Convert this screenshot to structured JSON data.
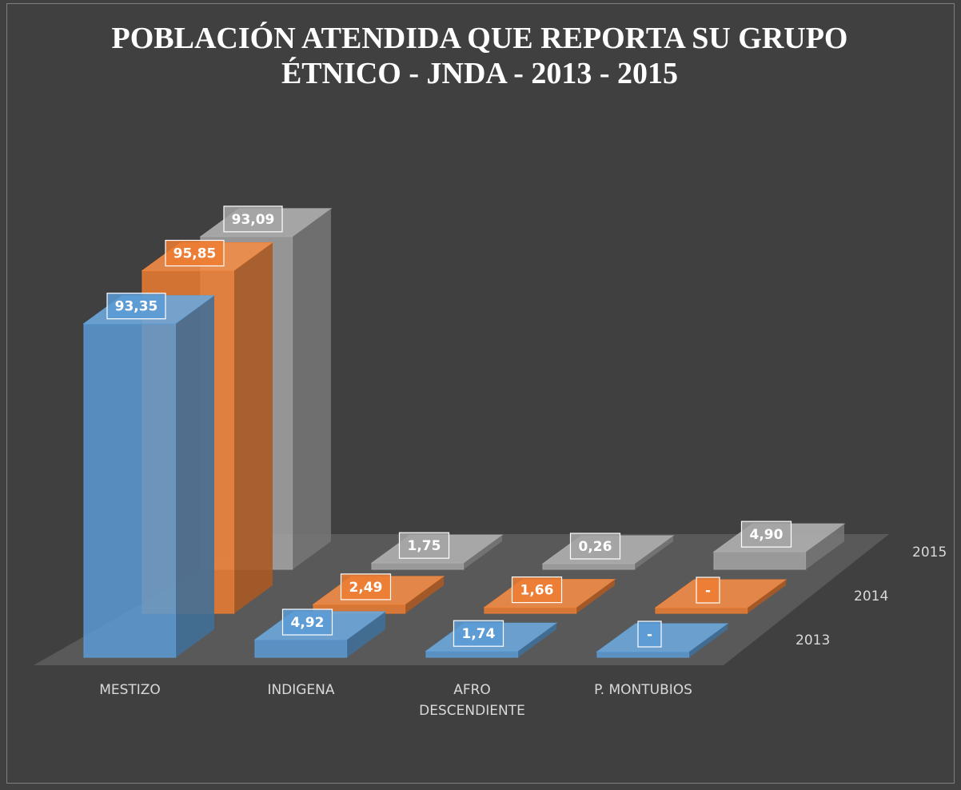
{
  "chart_data": {
    "type": "bar3d",
    "title": "POBLACIÓN ATENDIDA QUE REPORTA SU GRUPO ÉTNICO - JNDA - 2013 - 2015",
    "categories": [
      "MESTIZO",
      "INDIGENA",
      "AFRO DESCENDIENTE",
      "P. MONTUBIOS"
    ],
    "series": [
      {
        "name": "2013",
        "color": "#5b9bd5",
        "values": [
          93.35,
          4.92,
          1.74,
          0
        ],
        "value_labels": [
          "93,35",
          "4,92",
          "1,74",
          "-"
        ]
      },
      {
        "name": "2014",
        "color": "#ed7d31",
        "values": [
          95.85,
          2.49,
          1.66,
          0
        ],
        "value_labels": [
          "95,85",
          "2,49",
          "1,66",
          "-"
        ]
      },
      {
        "name": "2015",
        "color": "#a5a5a5",
        "values": [
          93.09,
          1.75,
          0.26,
          4.9
        ],
        "value_labels": [
          "93,09",
          "1,75",
          "0,26",
          "4,90"
        ]
      }
    ]
  }
}
